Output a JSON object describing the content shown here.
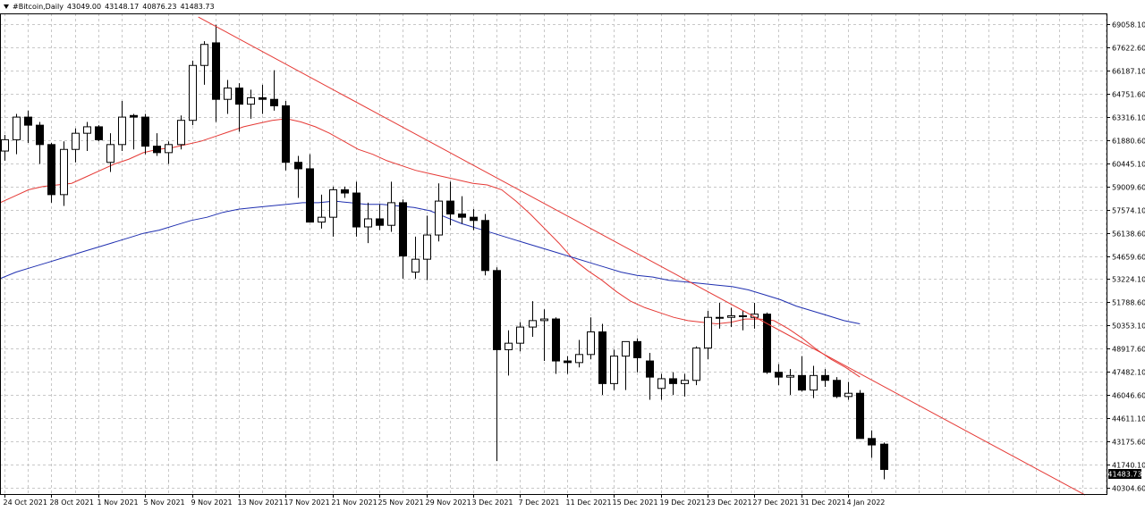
{
  "header": {
    "symbol": "#Bitcoin,Daily",
    "open": "43049.00",
    "high": "43148.17",
    "low": "40876.23",
    "close": "41483.73"
  },
  "price_badge": "41483.73",
  "chart_data": {
    "type": "candlestick",
    "title": "#Bitcoin,Daily",
    "ylim": [
      40304.6,
      70300
    ],
    "y_ticks": [
      "69058.10",
      "67622.60",
      "66187.10",
      "64751.60",
      "63316.10",
      "61880.60",
      "60445.10",
      "59009.60",
      "57574.10",
      "56138.60",
      "54659.60",
      "53224.10",
      "51788.60",
      "50353.10",
      "48917.60",
      "47482.10",
      "46046.60",
      "44611.10",
      "43175.60",
      "41740.10",
      "40304.60"
    ],
    "x_ticks": [
      "24 Oct 2021",
      "28 Oct 2021",
      "1 Nov 2021",
      "5 Nov 2021",
      "9 Nov 2021",
      "13 Nov 2021",
      "17 Nov 2021",
      "21 Nov 2021",
      "25 Nov 2021",
      "29 Nov 2021",
      "3 Dec 2021",
      "7 Dec 2021",
      "11 Dec 2021",
      "15 Dec 2021",
      "19 Dec 2021",
      "23 Dec 2021",
      "27 Dec 2021",
      "31 Dec 2021",
      "4 Jan 2022"
    ],
    "grid": true,
    "colors": {
      "bull_fill": "#ffffff",
      "bear_fill": "#000000",
      "ma_fast": "#e53935",
      "ma_slow": "#1f2fb0",
      "trendline": "#e53935",
      "grid": "#c8c8c8"
    },
    "candles": [
      {
        "o": 61200,
        "h": 62200,
        "l": 60600,
        "c": 61900
      },
      {
        "o": 61900,
        "h": 63500,
        "l": 61000,
        "c": 63300
      },
      {
        "o": 63300,
        "h": 63700,
        "l": 61700,
        "c": 62800
      },
      {
        "o": 62800,
        "h": 63000,
        "l": 60400,
        "c": 61600
      },
      {
        "o": 61600,
        "h": 61700,
        "l": 58000,
        "c": 58500
      },
      {
        "o": 58500,
        "h": 61800,
        "l": 57800,
        "c": 61300
      },
      {
        "o": 61300,
        "h": 62600,
        "l": 60500,
        "c": 62300
      },
      {
        "o": 62300,
        "h": 63000,
        "l": 61200,
        "c": 62700
      },
      {
        "o": 62700,
        "h": 62800,
        "l": 61800,
        "c": 61900
      },
      {
        "o": 60500,
        "h": 62300,
        "l": 59900,
        "c": 61600
      },
      {
        "o": 61600,
        "h": 64300,
        "l": 61200,
        "c": 63300
      },
      {
        "o": 63400,
        "h": 63500,
        "l": 61300,
        "c": 63300
      },
      {
        "o": 63300,
        "h": 63500,
        "l": 61000,
        "c": 61500
      },
      {
        "o": 61500,
        "h": 62300,
        "l": 60900,
        "c": 61100
      },
      {
        "o": 61100,
        "h": 61800,
        "l": 60400,
        "c": 61600
      },
      {
        "o": 61600,
        "h": 63400,
        "l": 61300,
        "c": 63100
      },
      {
        "o": 63100,
        "h": 66800,
        "l": 62800,
        "c": 66500
      },
      {
        "o": 66500,
        "h": 68000,
        "l": 65300,
        "c": 67800
      },
      {
        "o": 67900,
        "h": 69000,
        "l": 63000,
        "c": 64400
      },
      {
        "o": 64400,
        "h": 65600,
        "l": 63500,
        "c": 65100
      },
      {
        "o": 65100,
        "h": 65400,
        "l": 62400,
        "c": 64100
      },
      {
        "o": 64100,
        "h": 65000,
        "l": 63200,
        "c": 64500
      },
      {
        "o": 64500,
        "h": 65300,
        "l": 63500,
        "c": 64400
      },
      {
        "o": 64400,
        "h": 66200,
        "l": 63700,
        "c": 64000
      },
      {
        "o": 64000,
        "h": 64300,
        "l": 60000,
        "c": 60500
      },
      {
        "o": 60500,
        "h": 60900,
        "l": 58300,
        "c": 60100
      },
      {
        "o": 60100,
        "h": 61000,
        "l": 56800,
        "c": 56800
      },
      {
        "o": 56800,
        "h": 58500,
        "l": 56400,
        "c": 57100
      },
      {
        "o": 57100,
        "h": 59000,
        "l": 55900,
        "c": 58800
      },
      {
        "o": 58800,
        "h": 59000,
        "l": 58300,
        "c": 58600
      },
      {
        "o": 58600,
        "h": 59300,
        "l": 55900,
        "c": 56500
      },
      {
        "o": 56500,
        "h": 58000,
        "l": 55500,
        "c": 57000
      },
      {
        "o": 57000,
        "h": 57900,
        "l": 56300,
        "c": 56600
      },
      {
        "o": 56600,
        "h": 59300,
        "l": 56200,
        "c": 58000
      },
      {
        "o": 58000,
        "h": 58200,
        "l": 53300,
        "c": 54700
      },
      {
        "o": 53700,
        "h": 55900,
        "l": 53300,
        "c": 54500
      },
      {
        "o": 54500,
        "h": 57200,
        "l": 53200,
        "c": 56000
      },
      {
        "o": 56000,
        "h": 59200,
        "l": 55600,
        "c": 58100
      },
      {
        "o": 58100,
        "h": 59300,
        "l": 56600,
        "c": 57300
      },
      {
        "o": 57300,
        "h": 58400,
        "l": 56700,
        "c": 57100
      },
      {
        "o": 57100,
        "h": 57600,
        "l": 56300,
        "c": 56900
      },
      {
        "o": 56900,
        "h": 57300,
        "l": 53500,
        "c": 53800
      },
      {
        "o": 53800,
        "h": 54000,
        "l": 42000,
        "c": 48900
      },
      {
        "o": 48900,
        "h": 50100,
        "l": 47300,
        "c": 49300
      },
      {
        "o": 49300,
        "h": 50600,
        "l": 48800,
        "c": 50300
      },
      {
        "o": 50300,
        "h": 51900,
        "l": 49700,
        "c": 50700
      },
      {
        "o": 50700,
        "h": 51400,
        "l": 48200,
        "c": 50800
      },
      {
        "o": 50800,
        "h": 50900,
        "l": 47400,
        "c": 48200
      },
      {
        "o": 48200,
        "h": 48500,
        "l": 47400,
        "c": 48100
      },
      {
        "o": 48100,
        "h": 49500,
        "l": 47800,
        "c": 48600
      },
      {
        "o": 48600,
        "h": 50900,
        "l": 48300,
        "c": 50000
      },
      {
        "o": 50000,
        "h": 50500,
        "l": 46100,
        "c": 46800
      },
      {
        "o": 46800,
        "h": 48900,
        "l": 46400,
        "c": 48500
      },
      {
        "o": 48500,
        "h": 49300,
        "l": 46400,
        "c": 49400
      },
      {
        "o": 49400,
        "h": 49600,
        "l": 47500,
        "c": 48400
      },
      {
        "o": 48200,
        "h": 48700,
        "l": 45800,
        "c": 47200
      },
      {
        "o": 46500,
        "h": 47400,
        "l": 45800,
        "c": 47100
      },
      {
        "o": 47100,
        "h": 47500,
        "l": 46100,
        "c": 46800
      },
      {
        "o": 46800,
        "h": 47400,
        "l": 46000,
        "c": 47000
      },
      {
        "o": 47000,
        "h": 49100,
        "l": 46700,
        "c": 49000
      },
      {
        "o": 49000,
        "h": 51300,
        "l": 48300,
        "c": 50900
      },
      {
        "o": 50900,
        "h": 51800,
        "l": 50200,
        "c": 50900
      },
      {
        "o": 50900,
        "h": 51500,
        "l": 50300,
        "c": 51000
      },
      {
        "o": 51000,
        "h": 51300,
        "l": 50100,
        "c": 51000
      },
      {
        "o": 50900,
        "h": 51800,
        "l": 50200,
        "c": 51100
      },
      {
        "o": 51100,
        "h": 51200,
        "l": 47400,
        "c": 47500
      },
      {
        "o": 47500,
        "h": 48000,
        "l": 46700,
        "c": 47200
      },
      {
        "o": 47200,
        "h": 47700,
        "l": 46100,
        "c": 47300
      },
      {
        "o": 47300,
        "h": 48500,
        "l": 46300,
        "c": 46400
      },
      {
        "o": 46400,
        "h": 47900,
        "l": 45900,
        "c": 47300
      },
      {
        "o": 47300,
        "h": 47700,
        "l": 46600,
        "c": 47000
      },
      {
        "o": 47000,
        "h": 47200,
        "l": 45900,
        "c": 46000
      },
      {
        "o": 46000,
        "h": 46900,
        "l": 45800,
        "c": 46200
      },
      {
        "o": 46200,
        "h": 46400,
        "l": 43400,
        "c": 43400
      },
      {
        "o": 43400,
        "h": 43900,
        "l": 42200,
        "c": 43000
      },
      {
        "o": 43049.0,
        "h": 43148.17,
        "l": 40876.23,
        "c": 41483.73
      }
    ],
    "ma_fast_values": [
      58000,
      58400,
      58800,
      59000,
      59100,
      59200,
      59600,
      60000,
      60400,
      60700,
      61100,
      61300,
      61400,
      61600,
      61800,
      62100,
      62400,
      62700,
      62900,
      63100,
      63200,
      63000,
      62700,
      62300,
      61800,
      61300,
      61000,
      60600,
      60300,
      60000,
      59800,
      59600,
      59400,
      59200,
      59100,
      58800,
      58100,
      57300,
      56400,
      55500,
      54500,
      53800,
      53200,
      52500,
      51900,
      51500,
      51200,
      50900,
      50700,
      50600,
      50500,
      50600,
      50800,
      50800,
      50700,
      50200,
      49600,
      48900,
      48300,
      47800,
      47200
    ],
    "ma_slow_values": [
      53300,
      53700,
      54000,
      54300,
      54600,
      54900,
      55200,
      55500,
      55800,
      56100,
      56300,
      56600,
      56900,
      57100,
      57400,
      57600,
      57700,
      57800,
      57900,
      58000,
      58000,
      58100,
      58000,
      57900,
      57900,
      57800,
      57700,
      57500,
      57100,
      56700,
      56400,
      56100,
      55800,
      55500,
      55200,
      54900,
      54600,
      54300,
      54000,
      53700,
      53500,
      53400,
      53200,
      53100,
      53000,
      52900,
      52800,
      52600,
      52300,
      52000,
      51600,
      51300,
      51000,
      50700,
      50500
    ],
    "trendline": [
      [
        17,
        69500
      ],
      [
        92,
        39900
      ]
    ]
  }
}
